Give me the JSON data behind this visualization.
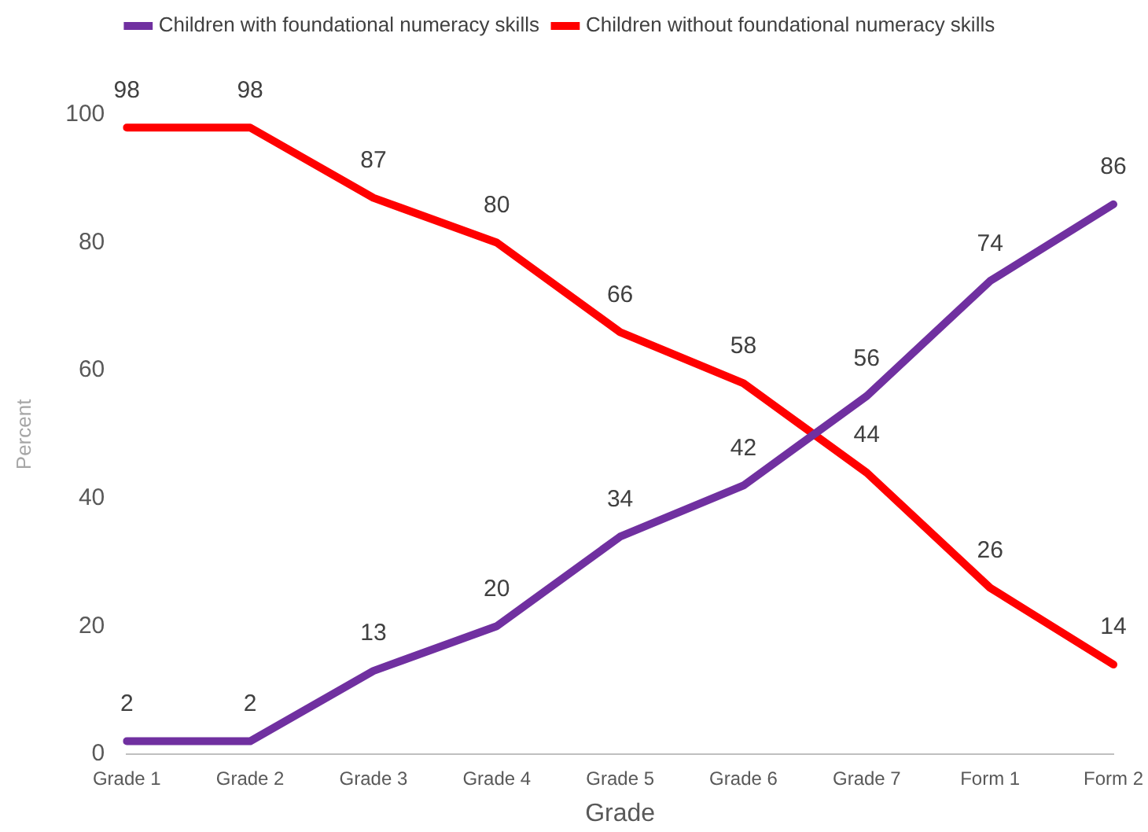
{
  "chart_data": {
    "type": "line",
    "xlabel": "Grade",
    "ylabel": "Percent",
    "categories": [
      "Grade 1",
      "Grade 2",
      "Grade 3",
      "Grade 4",
      "Grade 5",
      "Grade 6",
      "Grade 7",
      "Form 1",
      "Form 2"
    ],
    "series": [
      {
        "name": "Children with foundational numeracy skills",
        "color": "#7030a0",
        "values": [
          2,
          2,
          13,
          20,
          34,
          42,
          56,
          74,
          86
        ]
      },
      {
        "name": "Children without foundational numeracy skills",
        "color": "#ff0000",
        "values": [
          98,
          98,
          87,
          80,
          66,
          58,
          44,
          26,
          14
        ]
      }
    ],
    "ylim": [
      0,
      100
    ],
    "yticks": [
      0,
      20,
      40,
      60,
      80,
      100
    ],
    "grid": false,
    "legend": "top",
    "marker": "none",
    "line_style": "solid",
    "data_labels": true
  }
}
